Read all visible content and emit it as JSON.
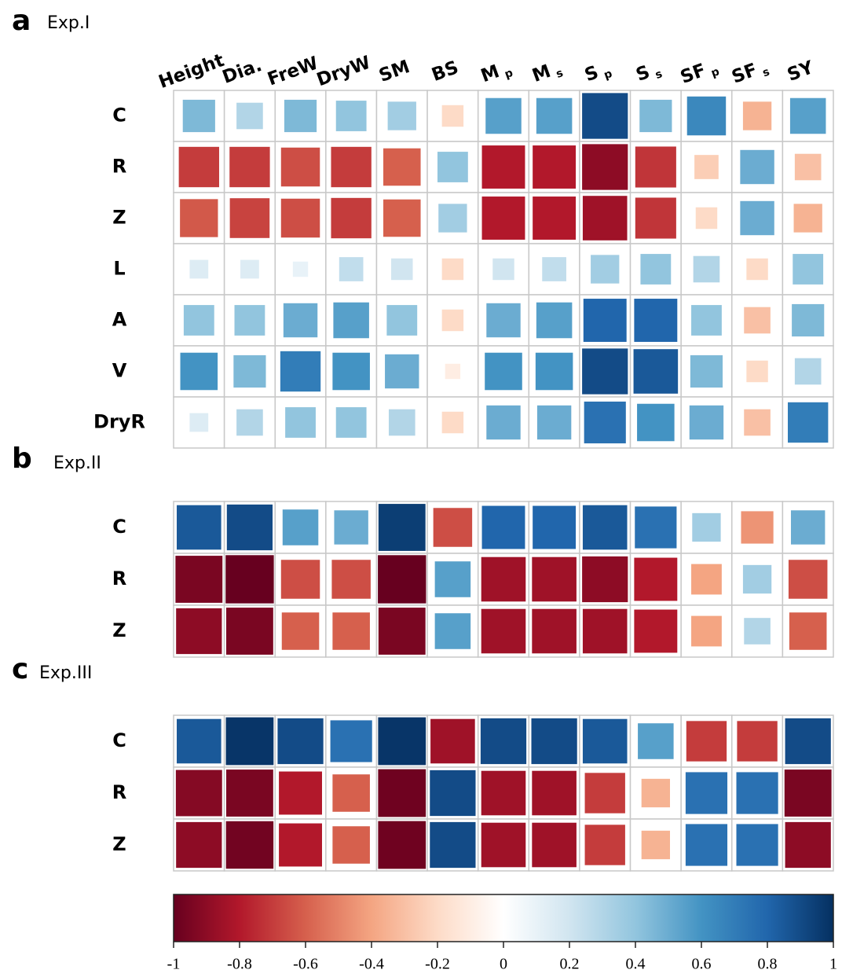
{
  "chart_data": [
    {
      "type": "heatmap",
      "panel": "a",
      "title": "Exp.I",
      "columns": [
        "Height",
        "Dia.",
        "FreW",
        "DryW",
        "SM",
        "BS",
        {
          "text": "M",
          "sub": "p"
        },
        {
          "text": "M",
          "sub": "s"
        },
        {
          "text": "S",
          "sub": "p"
        },
        {
          "text": "S",
          "sub": "s"
        },
        {
          "text": "SF",
          "sub": "p"
        },
        {
          "text": "SF",
          "sub": "s"
        },
        "SY"
      ],
      "rows": [
        "C",
        "R",
        "Z",
        "L",
        "A",
        "V",
        "DryR"
      ],
      "values": [
        [
          0.45,
          0.3,
          0.45,
          0.4,
          0.35,
          -0.2,
          0.55,
          0.55,
          0.9,
          0.45,
          0.65,
          -0.35,
          0.55
        ],
        [
          -0.7,
          -0.7,
          -0.65,
          -0.7,
          -0.6,
          0.4,
          -0.8,
          -0.8,
          -0.9,
          -0.72,
          -0.25,
          0.5,
          -0.3
        ],
        [
          -0.62,
          -0.68,
          -0.65,
          -0.7,
          -0.6,
          0.35,
          -0.8,
          -0.8,
          -0.85,
          -0.72,
          -0.2,
          0.5,
          -0.35
        ],
        [
          0.15,
          0.15,
          0.1,
          0.25,
          0.2,
          -0.2,
          0.2,
          0.25,
          0.35,
          0.4,
          0.3,
          -0.2,
          0.4
        ],
        [
          0.4,
          0.4,
          0.5,
          0.55,
          0.4,
          -0.2,
          0.5,
          0.55,
          0.8,
          0.8,
          0.4,
          -0.3,
          0.45
        ],
        [
          0.6,
          0.45,
          0.7,
          0.6,
          0.5,
          -0.1,
          0.6,
          0.6,
          0.9,
          0.85,
          0.45,
          -0.2,
          0.3
        ],
        [
          0.15,
          0.3,
          0.4,
          0.4,
          0.3,
          -0.2,
          0.5,
          0.5,
          0.75,
          0.6,
          0.5,
          -0.3,
          0.7
        ]
      ]
    },
    {
      "type": "heatmap",
      "panel": "b",
      "title": "Exp.II",
      "rows": [
        "C",
        "R",
        "Z"
      ],
      "values": [
        [
          0.85,
          0.9,
          0.55,
          0.5,
          0.95,
          -0.65,
          0.8,
          0.8,
          0.85,
          0.75,
          0.35,
          -0.45,
          0.5
        ],
        [
          -0.95,
          -1.0,
          -0.65,
          -0.65,
          -1.0,
          0.55,
          -0.85,
          -0.85,
          -0.9,
          -0.8,
          -0.4,
          0.35,
          -0.65
        ],
        [
          -0.9,
          -0.95,
          -0.6,
          -0.6,
          -0.95,
          0.55,
          -0.85,
          -0.85,
          -0.85,
          -0.8,
          -0.4,
          0.3,
          -0.6
        ]
      ]
    },
    {
      "type": "heatmap",
      "panel": "c",
      "title": "Exp.III",
      "rows": [
        "C",
        "R",
        "Z"
      ],
      "values": [
        [
          0.85,
          0.98,
          0.9,
          0.75,
          0.98,
          -0.85,
          0.9,
          0.9,
          0.85,
          0.55,
          -0.7,
          -0.7,
          0.9
        ],
        [
          -0.92,
          -0.95,
          -0.8,
          -0.6,
          -0.98,
          0.9,
          -0.85,
          -0.85,
          -0.7,
          -0.35,
          0.75,
          0.75,
          -0.95
        ],
        [
          -0.9,
          -0.97,
          -0.8,
          -0.6,
          -0.98,
          0.9,
          -0.85,
          -0.85,
          -0.7,
          -0.35,
          0.75,
          0.75,
          -0.9
        ]
      ],
      "colorbar": {
        "zlim": [
          -1,
          1
        ],
        "zticks": [
          -1,
          -0.8,
          -0.6,
          -0.4,
          -0.2,
          0,
          0.2,
          0.4,
          0.6,
          0.8,
          1
        ],
        "colorscale": [
          "#67001f",
          "#b2182b",
          "#d6604d",
          "#f4a582",
          "#fddbc7",
          "#ffffff",
          "#d1e5f0",
          "#92c5de",
          "#4393c3",
          "#2166ac",
          "#053061"
        ]
      }
    }
  ]
}
